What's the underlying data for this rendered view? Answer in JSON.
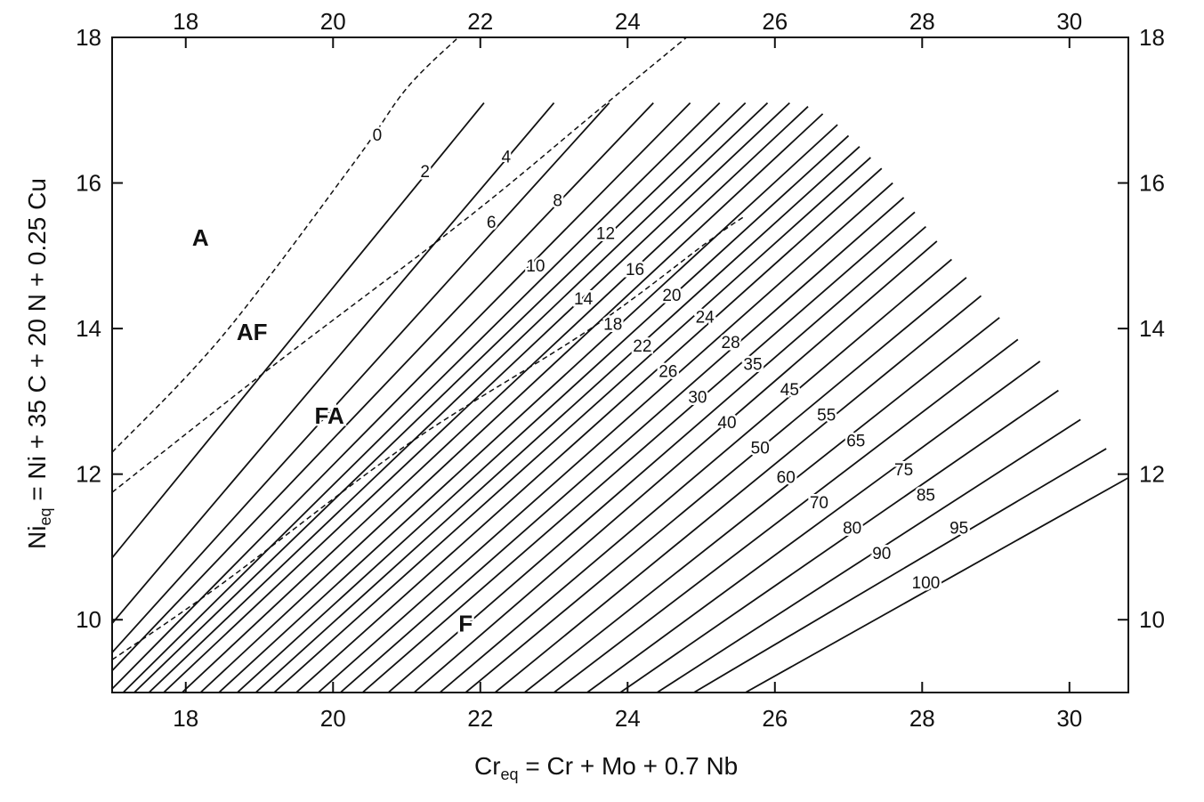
{
  "chart_data": {
    "type": "line",
    "xlabel_main": "Cr",
    "xlabel_sub": "eq",
    "xlabel_rest": " =  Cr + Mo + 0.7 Nb",
    "ylabel_main": "Ni",
    "ylabel_sub": "eq",
    "ylabel_rest": " =  Ni + 35 C + 20 N + 0.25 Cu",
    "xlim": [
      17,
      30.8
    ],
    "ylim": [
      9,
      18
    ],
    "x_ticks": [
      18,
      20,
      22,
      24,
      26,
      28,
      30
    ],
    "y_ticks": [
      10,
      12,
      14,
      16,
      18
    ],
    "grid": false,
    "regions": [
      {
        "label": "A",
        "x": 18.2,
        "y": 15.25
      },
      {
        "label": "AF",
        "x": 18.9,
        "y": 13.95
      },
      {
        "label": "FA",
        "x": 19.95,
        "y": 12.8
      },
      {
        "label": "F",
        "x": 21.8,
        "y": 9.95
      }
    ],
    "boundaries": [
      {
        "name": "A/AF",
        "points": [
          [
            17.0,
            12.3
          ],
          [
            18.5,
            13.9
          ],
          [
            20.3,
            16.3
          ],
          [
            21.0,
            17.3
          ],
          [
            21.7,
            18.0
          ]
        ]
      },
      {
        "name": "AF/FA",
        "points": [
          [
            17.0,
            11.75
          ],
          [
            19.2,
            13.5
          ],
          [
            21.8,
            15.5
          ],
          [
            23.6,
            17.0
          ],
          [
            24.8,
            18.0
          ]
        ]
      },
      {
        "name": "FA/F",
        "points": [
          [
            17.0,
            9.45
          ],
          [
            18.5,
            10.5
          ],
          [
            21.0,
            12.4
          ],
          [
            23.5,
            14.0
          ],
          [
            25.1,
            15.2
          ],
          [
            25.6,
            15.55
          ]
        ]
      }
    ],
    "iso_ferrite_lines": [
      {
        "label": "0",
        "x1": 17.0,
        "y1": 10.85,
        "x2": 22.05,
        "y2": 17.1,
        "lx": 20.6,
        "ly": 16.65
      },
      {
        "label": "2",
        "x1": 17.0,
        "y1": 9.95,
        "x2": 23.0,
        "y2": 17.1,
        "lx": 21.25,
        "ly": 16.15
      },
      {
        "label": "4",
        "x1": 17.0,
        "y1": 9.55,
        "x2": 23.75,
        "y2": 17.1,
        "lx": 22.35,
        "ly": 16.35
      },
      {
        "label": "6",
        "x1": 17.0,
        "y1": 9.3,
        "x2": 24.35,
        "y2": 17.1,
        "lx": 22.15,
        "ly": 15.45
      },
      {
        "label": "8",
        "x1": 17.0,
        "y1": 9.05,
        "x2": 24.85,
        "y2": 17.1,
        "lx": 23.05,
        "ly": 15.75
      },
      {
        "label": "10",
        "x1": 17.15,
        "y1": 9.0,
        "x2": 25.25,
        "y2": 17.1,
        "lx": 22.75,
        "ly": 14.85
      },
      {
        "label": "12",
        "x1": 17.3,
        "y1": 9.0,
        "x2": 25.6,
        "y2": 17.1,
        "lx": 23.7,
        "ly": 15.3
      },
      {
        "label": "14",
        "x1": 17.5,
        "y1": 9.0,
        "x2": 25.9,
        "y2": 17.1,
        "lx": 23.4,
        "ly": 14.4
      },
      {
        "label": "16",
        "x1": 17.7,
        "y1": 9.0,
        "x2": 26.2,
        "y2": 17.1,
        "lx": 24.1,
        "ly": 14.8
      },
      {
        "label": "18",
        "x1": 17.95,
        "y1": 9.0,
        "x2": 26.45,
        "y2": 17.05,
        "lx": 23.8,
        "ly": 14.05
      },
      {
        "label": "20",
        "x1": 18.2,
        "y1": 9.0,
        "x2": 26.65,
        "y2": 16.95,
        "lx": 24.6,
        "ly": 14.45
      },
      {
        "label": "22",
        "x1": 18.45,
        "y1": 9.0,
        "x2": 26.85,
        "y2": 16.8,
        "lx": 24.2,
        "ly": 13.75
      },
      {
        "label": "24",
        "x1": 18.7,
        "y1": 9.0,
        "x2": 27.0,
        "y2": 16.65,
        "lx": 25.05,
        "ly": 14.15
      },
      {
        "label": "26",
        "x1": 18.95,
        "y1": 9.0,
        "x2": 27.15,
        "y2": 16.5,
        "lx": 24.55,
        "ly": 13.4
      },
      {
        "label": "28",
        "x1": 19.2,
        "y1": 9.0,
        "x2": 27.3,
        "y2": 16.35,
        "lx": 25.4,
        "ly": 13.8
      },
      {
        "label": "30",
        "x1": 19.5,
        "y1": 9.0,
        "x2": 27.45,
        "y2": 16.2,
        "lx": 24.95,
        "ly": 13.05
      },
      {
        "label": "35",
        "x1": 19.8,
        "y1": 9.0,
        "x2": 27.6,
        "y2": 16.0,
        "lx": 25.7,
        "ly": 13.5
      },
      {
        "label": "40",
        "x1": 20.1,
        "y1": 9.0,
        "x2": 27.75,
        "y2": 15.8,
        "lx": 25.35,
        "ly": 12.7
      },
      {
        "label": "45",
        "x1": 20.4,
        "y1": 9.0,
        "x2": 27.9,
        "y2": 15.6,
        "lx": 26.2,
        "ly": 13.15
      },
      {
        "label": "50",
        "x1": 20.75,
        "y1": 9.0,
        "x2": 28.05,
        "y2": 15.4,
        "lx": 25.8,
        "ly": 12.35
      },
      {
        "label": "55",
        "x1": 21.1,
        "y1": 9.0,
        "x2": 28.2,
        "y2": 15.2,
        "lx": 26.7,
        "ly": 12.8
      },
      {
        "label": "60",
        "x1": 21.45,
        "y1": 9.0,
        "x2": 28.4,
        "y2": 14.95,
        "lx": 26.15,
        "ly": 11.95
      },
      {
        "label": "65",
        "x1": 21.8,
        "y1": 9.0,
        "x2": 28.6,
        "y2": 14.7,
        "lx": 27.1,
        "ly": 12.45
      },
      {
        "label": "70",
        "x1": 22.2,
        "y1": 9.0,
        "x2": 28.8,
        "y2": 14.45,
        "lx": 26.6,
        "ly": 11.6
      },
      {
        "label": "75",
        "x1": 22.6,
        "y1": 9.0,
        "x2": 29.05,
        "y2": 14.15,
        "lx": 27.75,
        "ly": 12.05
      },
      {
        "label": "80",
        "x1": 23.0,
        "y1": 9.0,
        "x2": 29.3,
        "y2": 13.85,
        "lx": 27.05,
        "ly": 11.25
      },
      {
        "label": "85",
        "x1": 23.45,
        "y1": 9.0,
        "x2": 29.6,
        "y2": 13.55,
        "lx": 28.05,
        "ly": 11.7
      },
      {
        "label": "90",
        "x1": 23.9,
        "y1": 9.0,
        "x2": 29.85,
        "y2": 13.15,
        "lx": 27.45,
        "ly": 10.9
      },
      {
        "label": "95",
        "x1": 24.4,
        "y1": 9.0,
        "x2": 30.15,
        "y2": 12.75,
        "lx": 28.5,
        "ly": 11.25
      },
      {
        "label": "100",
        "x1": 24.9,
        "y1": 9.0,
        "x2": 30.5,
        "y2": 12.35,
        "lx": 28.05,
        "ly": 10.5
      },
      {
        "label": "",
        "x1": 25.6,
        "y1": 9.0,
        "x2": 30.8,
        "y2": 11.95,
        "lx": 0,
        "ly": 0
      }
    ]
  }
}
